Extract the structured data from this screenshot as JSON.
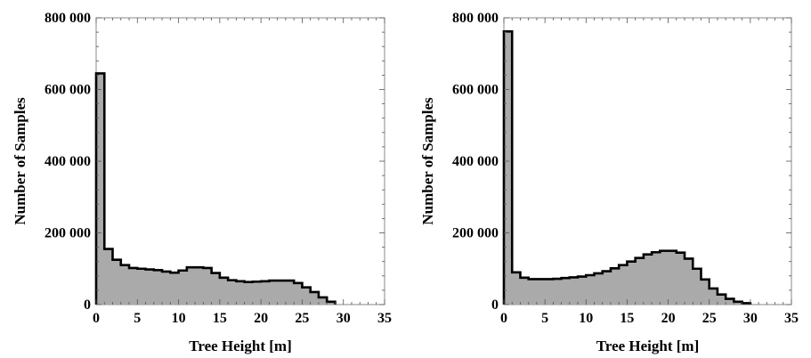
{
  "chart_data": [
    {
      "type": "area",
      "step": true,
      "xlabel": "Tree Height [m]",
      "ylabel": "Number of Samples",
      "xlim": [
        0,
        35
      ],
      "ylim": [
        0,
        800000
      ],
      "xticks": [
        0,
        5,
        10,
        15,
        20,
        25,
        30,
        35
      ],
      "xtick_labels": [
        "0",
        "5",
        "10",
        "15",
        "20",
        "25",
        "30",
        "35"
      ],
      "yticks": [
        0,
        200000,
        400000,
        600000,
        800000
      ],
      "ytick_labels": [
        "0",
        "200 000",
        "400 000",
        "600 000",
        "800 000"
      ],
      "grid": false,
      "fill_color": "#aaaaaa",
      "line_color": "#000000",
      "bin_width": 1,
      "x": [
        0,
        1,
        2,
        3,
        4,
        5,
        6,
        7,
        8,
        9,
        10,
        11,
        12,
        13,
        14,
        15,
        16,
        17,
        18,
        19,
        20,
        21,
        22,
        23,
        24,
        25,
        26,
        27,
        28
      ],
      "values": [
        645000,
        155000,
        125000,
        110000,
        102000,
        100000,
        98000,
        96000,
        92000,
        89000,
        95000,
        104000,
        104000,
        102000,
        88000,
        75000,
        68000,
        65000,
        63000,
        64000,
        65000,
        67000,
        67000,
        67000,
        60000,
        48000,
        35000,
        20000,
        8000
      ]
    },
    {
      "type": "area",
      "step": true,
      "xlabel": "Tree Height [m]",
      "ylabel": "Number of Samples",
      "xlim": [
        0,
        35
      ],
      "ylim": [
        0,
        800000
      ],
      "xticks": [
        0,
        5,
        10,
        15,
        20,
        25,
        30,
        35
      ],
      "xtick_labels": [
        "0",
        "5",
        "10",
        "15",
        "20",
        "25",
        "30",
        "35"
      ],
      "yticks": [
        0,
        200000,
        400000,
        600000,
        800000
      ],
      "ytick_labels": [
        "0",
        "200 000",
        "400 000",
        "600 000",
        "800 000"
      ],
      "grid": false,
      "fill_color": "#aaaaaa",
      "line_color": "#000000",
      "bin_width": 1,
      "x": [
        0,
        1,
        2,
        3,
        4,
        5,
        6,
        7,
        8,
        9,
        10,
        11,
        12,
        13,
        14,
        15,
        16,
        17,
        18,
        19,
        20,
        21,
        22,
        23,
        24,
        25,
        26,
        27,
        28,
        29
      ],
      "values": [
        762000,
        90000,
        75000,
        71000,
        71000,
        71000,
        72000,
        74000,
        76000,
        78000,
        82000,
        87000,
        93000,
        101000,
        110000,
        120000,
        130000,
        140000,
        146000,
        150000,
        150000,
        145000,
        128000,
        100000,
        70000,
        45000,
        28000,
        16000,
        8000,
        4000
      ]
    }
  ]
}
